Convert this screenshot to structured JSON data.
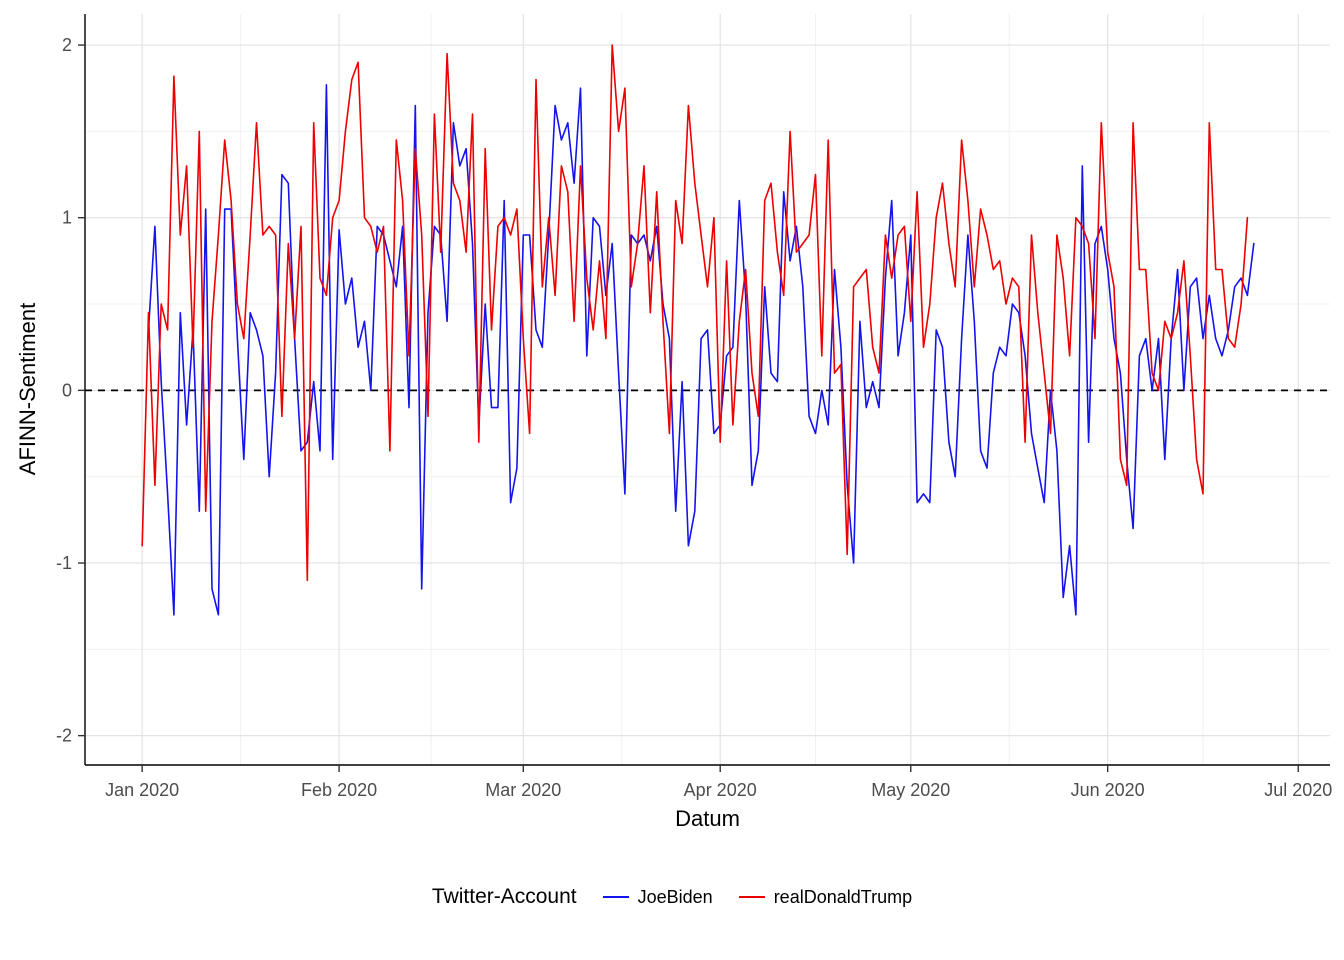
{
  "chart_data": {
    "type": "line",
    "title": "",
    "xlabel": "Datum",
    "ylabel": "AFINN-Sentiment",
    "x_tick_labels": [
      "Jan 2020",
      "Feb 2020",
      "Mar 2020",
      "Apr 2020",
      "May 2020",
      "Jun 2020",
      "Jul 2020"
    ],
    "x_tick_days": [
      0,
      31,
      60,
      91,
      121,
      152,
      182
    ],
    "x_minor_days": [
      15.5,
      45.5,
      75.5,
      106,
      136.5,
      167
    ],
    "yticks": [
      -2,
      -1,
      0,
      1,
      2
    ],
    "y_minor": [
      -1.5,
      -0.5,
      0.5,
      1.5
    ],
    "xlim": [
      -9,
      187
    ],
    "ylim": [
      -2.17,
      2.18
    ],
    "grid": true,
    "reference_line": {
      "y": 0,
      "style": "dashed",
      "color": "#000000"
    },
    "legend": {
      "title": "Twitter-Account",
      "position": "bottom"
    },
    "colors": {
      "grid_major": "#E3E3E3",
      "grid_minor": "#F1F1F1",
      "axis_line": "#000000",
      "tick_mark": "#333333",
      "tick_label": "#4D4D4D",
      "background": "#FFFFFF"
    },
    "series": [
      {
        "name": "JoeBiden",
        "color": "#1414EE",
        "start_day": 1,
        "values": [
          0.35,
          0.95,
          0.05,
          -0.6,
          -1.3,
          0.45,
          -0.2,
          0.35,
          -0.7,
          1.05,
          -1.15,
          -1.3,
          1.05,
          1.05,
          0.3,
          -0.4,
          0.45,
          0.35,
          0.2,
          -0.5,
          0.1,
          1.25,
          1.2,
          0.3,
          -0.35,
          -0.3,
          0.05,
          -0.35,
          1.77,
          -0.4,
          0.93,
          0.5,
          0.65,
          0.25,
          0.4,
          0.0,
          0.95,
          0.9,
          0.75,
          0.6,
          0.95,
          -0.1,
          1.65,
          -1.15,
          0.45,
          0.95,
          0.9,
          0.4,
          1.55,
          1.3,
          1.4,
          0.85,
          -0.2,
          0.5,
          -0.1,
          -0.1,
          1.1,
          -0.65,
          -0.45,
          0.9,
          0.9,
          0.35,
          0.25,
          0.9,
          1.65,
          1.45,
          1.55,
          1.2,
          1.75,
          0.2,
          1.0,
          0.95,
          0.55,
          0.85,
          0.1,
          -0.6,
          0.9,
          0.85,
          0.9,
          0.75,
          0.95,
          0.5,
          0.3,
          -0.7,
          0.05,
          -0.9,
          -0.7,
          0.3,
          0.35,
          -0.25,
          -0.2,
          0.2,
          0.25,
          1.1,
          0.55,
          -0.55,
          -0.35,
          0.6,
          0.1,
          0.05,
          1.15,
          0.75,
          0.95,
          0.6,
          -0.15,
          -0.25,
          0.0,
          -0.2,
          0.7,
          0.25,
          -0.55,
          -1.0,
          0.4,
          -0.1,
          0.05,
          -0.1,
          0.65,
          1.1,
          0.2,
          0.45,
          0.9,
          -0.65,
          -0.6,
          -0.65,
          0.35,
          0.25,
          -0.3,
          -0.5,
          0.3,
          0.9,
          0.4,
          -0.35,
          -0.45,
          0.1,
          0.25,
          0.2,
          0.5,
          0.45,
          0.2,
          -0.25,
          -0.45,
          -0.65,
          0.0,
          -0.35,
          -1.2,
          -0.9,
          -1.3,
          1.3,
          -0.3,
          0.85,
          0.95,
          0.7,
          0.3,
          0.1,
          -0.4,
          -0.8,
          0.2,
          0.3,
          0.0,
          0.3,
          -0.4,
          0.3,
          0.7,
          0.0,
          0.6,
          0.65,
          0.3,
          0.55,
          0.3,
          0.2,
          0.35,
          0.6,
          0.65,
          0.55,
          0.85
        ]
      },
      {
        "name": "realDonaldTrump",
        "color": "#EE0000",
        "start_day": 0,
        "values": [
          -0.9,
          0.45,
          -0.55,
          0.5,
          0.35,
          1.82,
          0.9,
          1.3,
          0.25,
          1.5,
          -0.7,
          0.4,
          0.9,
          1.45,
          1.1,
          0.5,
          0.3,
          0.9,
          1.55,
          0.9,
          0.95,
          0.9,
          -0.15,
          0.85,
          0.3,
          0.95,
          -1.1,
          1.55,
          0.65,
          0.55,
          1.0,
          1.1,
          1.5,
          1.8,
          1.9,
          1.0,
          0.95,
          0.8,
          0.95,
          -0.35,
          1.45,
          1.1,
          0.2,
          1.4,
          0.9,
          -0.15,
          1.6,
          0.8,
          1.95,
          1.2,
          1.1,
          0.8,
          1.6,
          -0.3,
          1.4,
          0.35,
          0.95,
          1.0,
          0.9,
          1.05,
          0.3,
          -0.25,
          1.8,
          0.6,
          1.0,
          0.55,
          1.3,
          1.15,
          0.4,
          1.3,
          0.65,
          0.35,
          0.75,
          0.3,
          2.0,
          1.5,
          1.75,
          0.6,
          0.85,
          1.3,
          0.45,
          1.15,
          0.4,
          -0.25,
          1.1,
          0.85,
          1.65,
          1.2,
          0.9,
          0.6,
          1.0,
          -0.3,
          0.75,
          -0.2,
          0.4,
          0.7,
          0.1,
          -0.15,
          1.1,
          1.2,
          0.8,
          0.55,
          1.5,
          0.8,
          0.85,
          0.9,
          1.25,
          0.2,
          1.45,
          0.1,
          0.15,
          -0.95,
          0.6,
          0.65,
          0.7,
          0.25,
          0.1,
          0.9,
          0.65,
          0.9,
          0.95,
          0.4,
          1.15,
          0.25,
          0.5,
          1.0,
          1.2,
          0.85,
          0.6,
          1.45,
          1.1,
          0.6,
          1.05,
          0.9,
          0.7,
          0.75,
          0.5,
          0.65,
          0.6,
          -0.3,
          0.9,
          0.45,
          0.1,
          -0.25,
          0.9,
          0.65,
          0.2,
          1.0,
          0.95,
          0.85,
          0.3,
          1.55,
          0.8,
          0.6,
          -0.4,
          -0.55,
          1.55,
          0.7,
          0.7,
          0.1,
          0.0,
          0.4,
          0.3,
          0.45,
          0.75,
          0.2,
          -0.4,
          -0.6,
          1.55,
          0.7,
          0.7,
          0.3,
          0.25,
          0.5,
          1.0
        ]
      }
    ]
  }
}
